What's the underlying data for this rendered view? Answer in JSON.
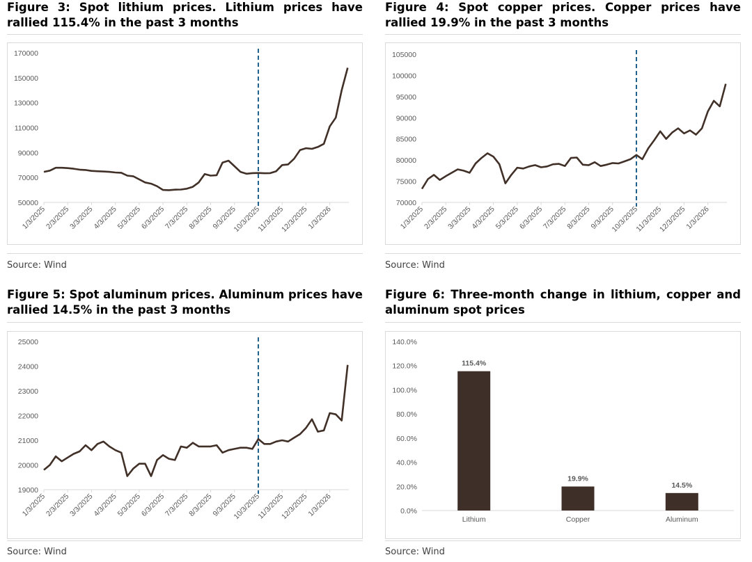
{
  "figures": {
    "f3": {
      "title": "Figure 3: Spot lithium prices. Lithium prices have rallied 115.4% in the past 3 months",
      "source": "Source: Wind"
    },
    "f4": {
      "title": "Figure 4: Spot copper prices. Copper prices have rallied 19.9% in the past 3 months",
      "source": "Source: Wind"
    },
    "f5": {
      "title": "Figure 5: Spot aluminum prices. Aluminum prices have rallied 14.5% in the past 3 months",
      "source": "Source: Wind"
    },
    "f6": {
      "title": "Figure 6: Three-month change in lithium, copper and aluminum spot prices",
      "source": "Source: Wind"
    }
  },
  "colors": {
    "line": "#403027",
    "dash": "#1f5f8b",
    "bar": "#3e3028",
    "axis": "#d9d9d9",
    "text": "#595959"
  },
  "chart_data": [
    {
      "id": "lithium",
      "type": "line",
      "title": "Spot lithium prices",
      "ylim": [
        50000,
        170000
      ],
      "yticks": [
        50000,
        70000,
        90000,
        110000,
        130000,
        150000,
        170000
      ],
      "xticks": [
        "1/3/2025",
        "2/3/2025",
        "3/3/2025",
        "4/3/2025",
        "5/3/2025",
        "6/3/2025",
        "7/3/2025",
        "8/3/2025",
        "9/3/2025",
        "10/3/2025",
        "11/3/2025",
        "12/3/2025",
        "1/3/2026"
      ],
      "x_start": 0,
      "x_end": 12.8,
      "marker_x": 9,
      "x": [
        0,
        0.25,
        0.5,
        0.75,
        1,
        1.25,
        1.5,
        1.75,
        2,
        2.25,
        2.5,
        2.75,
        3,
        3.25,
        3.5,
        3.75,
        4,
        4.25,
        4.5,
        4.75,
        5,
        5.25,
        5.5,
        5.75,
        6,
        6.25,
        6.5,
        6.75,
        7,
        7.25,
        7.5,
        7.75,
        8,
        8.25,
        8.5,
        8.75,
        9,
        9.25,
        9.5,
        9.75,
        10,
        10.25,
        10.5,
        10.75,
        11,
        11.25,
        11.5,
        11.75,
        12,
        12.25,
        12.5,
        12.75
      ],
      "y": [
        74500,
        75500,
        77800,
        77800,
        77500,
        77000,
        76300,
        76000,
        75300,
        75000,
        74800,
        74500,
        74000,
        73800,
        71500,
        71000,
        68500,
        66000,
        65000,
        63000,
        60000,
        59800,
        60200,
        60300,
        61000,
        62500,
        66000,
        72800,
        71500,
        71800,
        82000,
        83500,
        79000,
        74500,
        73000,
        73500,
        73600,
        73400,
        73500,
        75000,
        80000,
        80500,
        85000,
        92000,
        93500,
        93000,
        94500,
        97000,
        111000,
        118000,
        140000,
        158000
      ]
    },
    {
      "id": "copper",
      "type": "line",
      "title": "Spot copper prices",
      "ylim": [
        70000,
        105000
      ],
      "yticks": [
        70000,
        75000,
        80000,
        85000,
        90000,
        95000,
        100000,
        105000
      ],
      "xticks": [
        "1/3/2025",
        "2/3/2025",
        "3/3/2025",
        "4/3/2025",
        "5/3/2025",
        "6/3/2025",
        "7/3/2025",
        "8/3/2025",
        "9/3/2025",
        "10/3/2025",
        "11/3/2025",
        "12/3/2025",
        "1/3/2026"
      ],
      "x_start": 0,
      "x_end": 12.8,
      "marker_x": 9,
      "x": [
        0,
        0.25,
        0.5,
        0.75,
        1,
        1.25,
        1.5,
        1.75,
        2,
        2.25,
        2.5,
        2.75,
        3,
        3.25,
        3.5,
        3.75,
        4,
        4.25,
        4.5,
        4.75,
        5,
        5.25,
        5.5,
        5.75,
        6,
        6.25,
        6.5,
        6.75,
        7,
        7.25,
        7.5,
        7.75,
        8,
        8.25,
        8.5,
        8.75,
        9,
        9.25,
        9.5,
        9.75,
        10,
        10.25,
        10.5,
        10.75,
        11,
        11.25,
        11.5,
        11.75,
        12,
        12.25,
        12.5,
        12.75
      ],
      "y": [
        73200,
        75500,
        76500,
        75300,
        76200,
        77000,
        77800,
        77500,
        77000,
        79200,
        80500,
        81600,
        80800,
        79000,
        74500,
        76500,
        78200,
        78000,
        78500,
        78800,
        78300,
        78500,
        79000,
        79100,
        78600,
        80500,
        80600,
        78900,
        78800,
        79500,
        78600,
        78900,
        79300,
        79200,
        79700,
        80200,
        81200,
        80200,
        82800,
        84700,
        86800,
        85000,
        86500,
        87500,
        86300,
        87000,
        86000,
        87500,
        91500,
        94000,
        92700,
        98000
      ]
    },
    {
      "id": "aluminum",
      "type": "line",
      "title": "Spot aluminum prices",
      "ylim": [
        19000,
        25000
      ],
      "yticks": [
        19000,
        20000,
        21000,
        22000,
        23000,
        24000,
        25000
      ],
      "xticks": [
        "1/3/2025",
        "2/3/2025",
        "3/3/2025",
        "4/3/2025",
        "5/3/2025",
        "6/3/2025",
        "7/3/2025",
        "8/3/2025",
        "9/3/2025",
        "10/3/2025",
        "11/3/2025",
        "12/3/2025",
        "1/3/2026"
      ],
      "x_start": 0,
      "x_end": 12.8,
      "marker_x": 9,
      "x": [
        0,
        0.25,
        0.5,
        0.75,
        1,
        1.25,
        1.5,
        1.75,
        2,
        2.25,
        2.5,
        2.75,
        3,
        3.25,
        3.5,
        3.75,
        4,
        4.25,
        4.5,
        4.75,
        5,
        5.25,
        5.5,
        5.75,
        6,
        6.25,
        6.5,
        6.75,
        7,
        7.25,
        7.5,
        7.75,
        8,
        8.25,
        8.5,
        8.75,
        9,
        9.25,
        9.5,
        9.75,
        10,
        10.25,
        10.5,
        10.75,
        11,
        11.25,
        11.5,
        11.75,
        12,
        12.25,
        12.5,
        12.75
      ],
      "y": [
        19800,
        20000,
        20350,
        20150,
        20300,
        20450,
        20550,
        20800,
        20600,
        20850,
        20950,
        20750,
        20600,
        20500,
        19550,
        19850,
        20050,
        20050,
        19550,
        20200,
        20400,
        20250,
        20200,
        20750,
        20700,
        20900,
        20750,
        20750,
        20750,
        20800,
        20500,
        20600,
        20650,
        20700,
        20700,
        20650,
        21050,
        20850,
        20850,
        20950,
        21000,
        20950,
        21100,
        21250,
        21500,
        21850,
        21350,
        21400,
        22100,
        22050,
        21800,
        24050
      ]
    },
    {
      "id": "three-month-change",
      "type": "bar",
      "title": "Three-month change in lithium, copper and aluminum spot prices",
      "categories": [
        "Lithium",
        "Copper",
        "Aluminum"
      ],
      "values": [
        115.4,
        19.9,
        14.5
      ],
      "value_labels": [
        "115.4%",
        "19.9%",
        "14.5%"
      ],
      "ylim": [
        0,
        140
      ],
      "yticks": [
        "0.0%",
        "20.0%",
        "40.0%",
        "60.0%",
        "80.0%",
        "100.0%",
        "120.0%",
        "140.0%"
      ]
    }
  ]
}
